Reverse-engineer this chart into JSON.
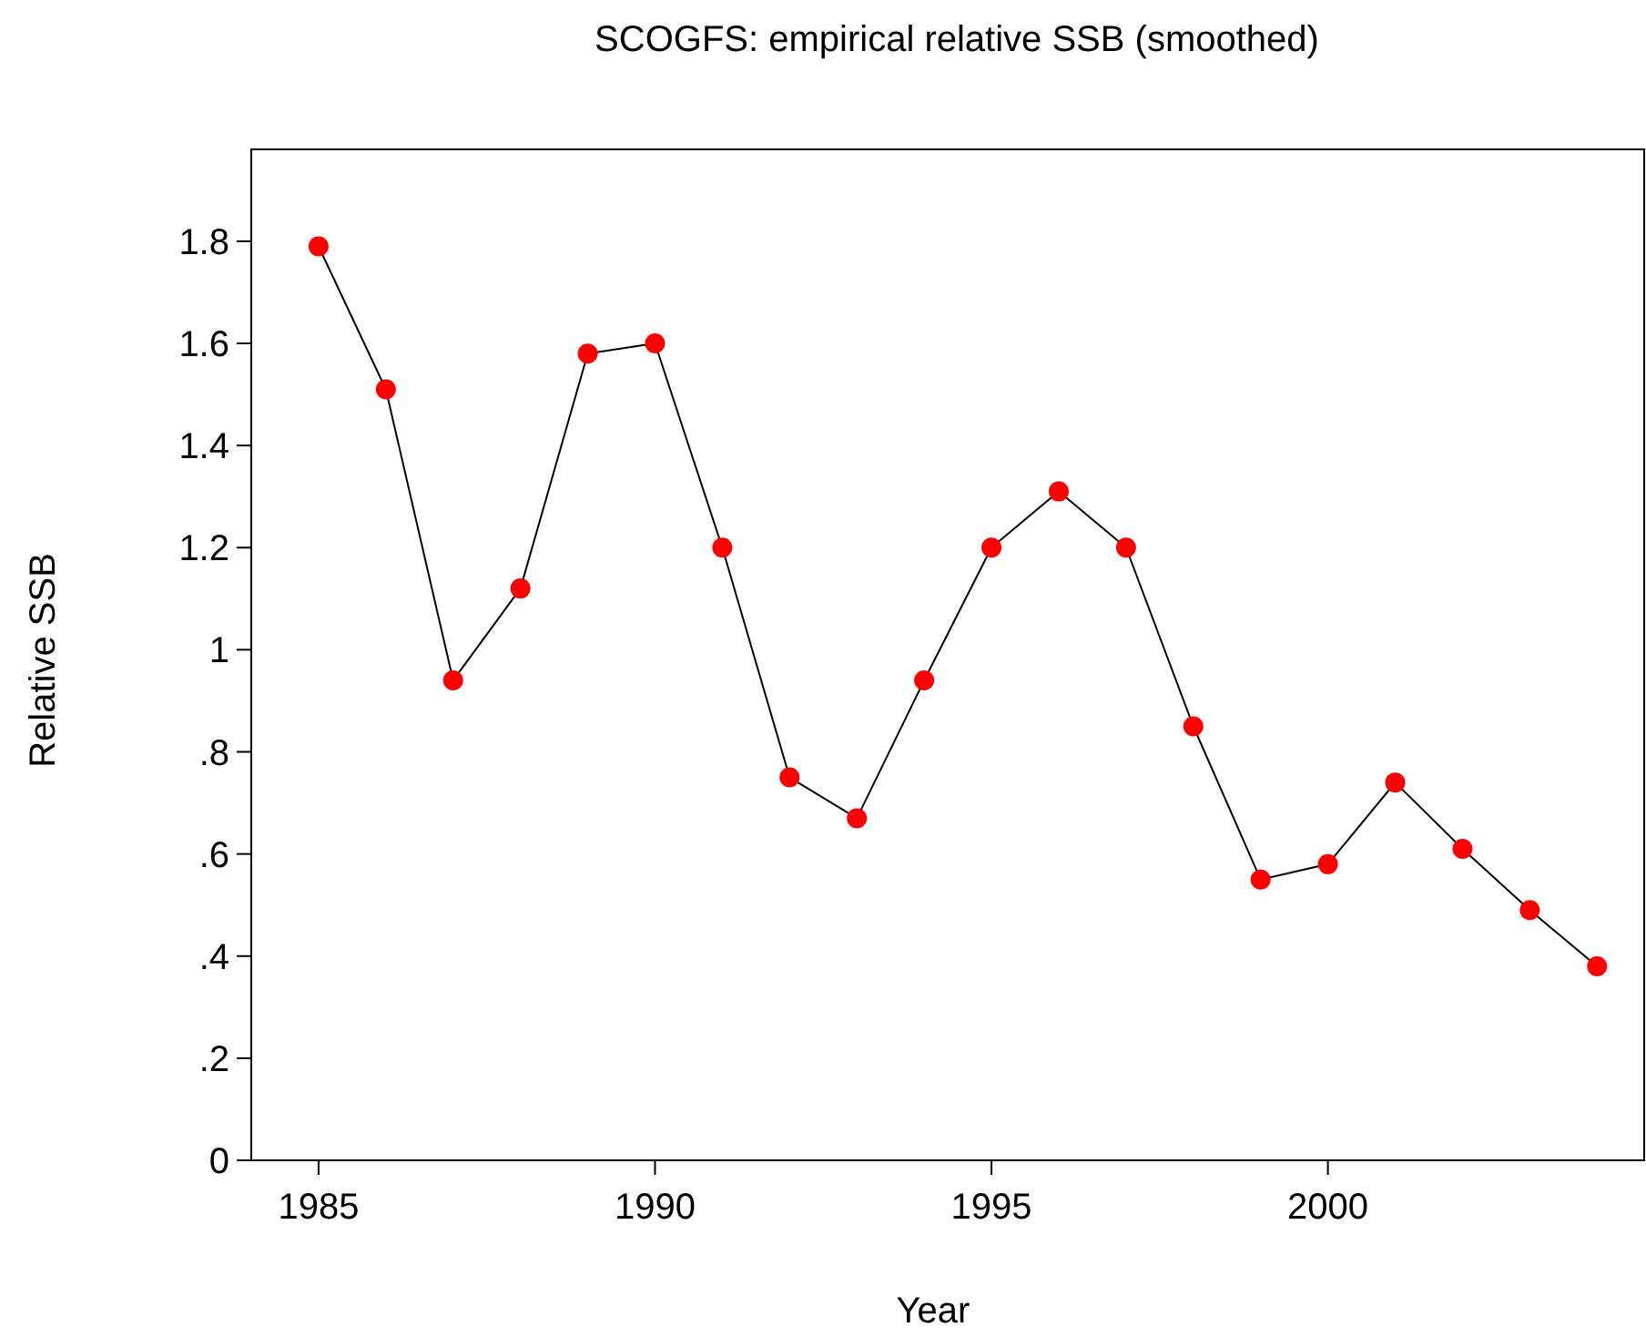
{
  "chart_data": {
    "type": "line",
    "title": "SCOGFS: empirical relative SSB (smoothed)",
    "xlabel": "Year",
    "ylabel": "Relative SSB",
    "x": [
      1985,
      1986,
      1987,
      1988,
      1989,
      1990,
      1991,
      1992,
      1993,
      1994,
      1995,
      1996,
      1997,
      1998,
      1999,
      2000,
      2001,
      2002,
      2003,
      2004
    ],
    "series": [
      {
        "color": "#ff0000",
        "values": [
          1.79,
          1.51,
          0.94,
          1.12,
          1.58,
          1.6,
          1.2,
          0.75,
          0.67,
          0.94,
          1.2,
          1.31,
          1.2,
          0.85,
          0.55,
          0.58,
          0.74,
          0.61,
          0.49,
          0.38
        ]
      }
    ],
    "xlim": [
      1984,
      2004.7
    ],
    "xticks": [
      1985,
      1990,
      1995,
      2000
    ],
    "ylim": [
      0,
      1.98
    ],
    "yticks": [
      0,
      {
        "value": 0.2,
        "label": ".2"
      },
      {
        "value": 0.4,
        "label": ".4"
      },
      {
        "value": 0.6,
        "label": ".6"
      },
      {
        "value": 0.8,
        "label": ".8"
      },
      1,
      1.2,
      1.4,
      1.6,
      1.8
    ],
    "grid": false,
    "marker": "circle",
    "line_style": "solid"
  }
}
